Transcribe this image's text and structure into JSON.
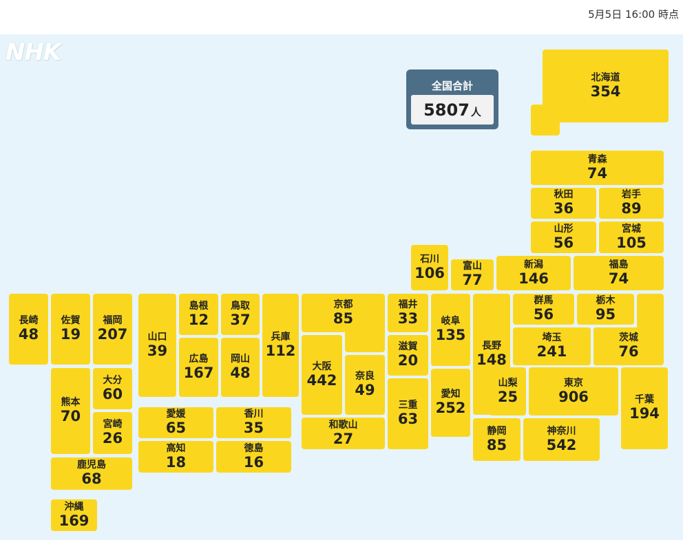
{
  "timestamp": "5月5日 16:00 時点",
  "logo": "NHK",
  "total": {
    "label": "全国合計",
    "value": "5807",
    "unit": "人"
  },
  "prefectures": [
    {
      "id": "hokkaido",
      "name": "北海道",
      "value": "354"
    },
    {
      "id": "aomori",
      "name": "青森",
      "value": "74"
    },
    {
      "id": "akita",
      "name": "秋田",
      "value": "36"
    },
    {
      "id": "iwate",
      "name": "岩手",
      "value": "89"
    },
    {
      "id": "yamagata",
      "name": "山形",
      "value": "56"
    },
    {
      "id": "miyagi",
      "name": "宮城",
      "value": "105"
    },
    {
      "id": "ishikawa",
      "name": "石川",
      "value": "106"
    },
    {
      "id": "toyama",
      "name": "富山",
      "value": "77"
    },
    {
      "id": "niigata",
      "name": "新潟",
      "value": "146"
    },
    {
      "id": "fukushima",
      "name": "福島",
      "value": "74"
    },
    {
      "id": "nagasaki",
      "name": "長崎",
      "value": "48"
    },
    {
      "id": "saga",
      "name": "佐賀",
      "value": "19"
    },
    {
      "id": "fukuoka",
      "name": "福岡",
      "value": "207"
    },
    {
      "id": "yamaguchi",
      "name": "山口",
      "value": "39"
    },
    {
      "id": "shimane",
      "name": "島根",
      "value": "12"
    },
    {
      "id": "tottori",
      "name": "鳥取",
      "value": "37"
    },
    {
      "id": "hyogo",
      "name": "兵庫",
      "value": "112"
    },
    {
      "id": "kyoto",
      "name": "京都",
      "value": "85"
    },
    {
      "id": "fukui",
      "name": "福井",
      "value": "33"
    },
    {
      "id": "gifu",
      "name": "岐阜",
      "value": "135"
    },
    {
      "id": "nagano",
      "name": "長野",
      "value": "148"
    },
    {
      "id": "gunma",
      "name": "群馬",
      "value": "56"
    },
    {
      "id": "tochigi",
      "name": "栃木",
      "value": "95"
    },
    {
      "id": "ibaraki",
      "name": "茨城",
      "value": "76"
    },
    {
      "id": "saitama",
      "name": "埼玉",
      "value": "241"
    },
    {
      "id": "hiroshima",
      "name": "広島",
      "value": "167"
    },
    {
      "id": "okayama",
      "name": "岡山",
      "value": "48"
    },
    {
      "id": "osaka",
      "name": "大阪",
      "value": "442"
    },
    {
      "id": "nara",
      "name": "奈良",
      "value": "49"
    },
    {
      "id": "shiga",
      "name": "滋賀",
      "value": "20"
    },
    {
      "id": "mie",
      "name": "三重",
      "value": "63"
    },
    {
      "id": "aichi",
      "name": "愛知",
      "value": "252"
    },
    {
      "id": "yamanashi",
      "name": "山梨",
      "value": "25"
    },
    {
      "id": "tokyo",
      "name": "東京",
      "value": "906"
    },
    {
      "id": "chiba",
      "name": "千葉",
      "value": "194"
    },
    {
      "id": "kumamoto",
      "name": "熊本",
      "value": "70"
    },
    {
      "id": "oita",
      "name": "大分",
      "value": "60"
    },
    {
      "id": "miyazaki",
      "name": "宮崎",
      "value": "26"
    },
    {
      "id": "ehime",
      "name": "愛媛",
      "value": "65"
    },
    {
      "id": "kagawa",
      "name": "香川",
      "value": "35"
    },
    {
      "id": "kochi",
      "name": "高知",
      "value": "18"
    },
    {
      "id": "tokushima",
      "name": "徳島",
      "value": "16"
    },
    {
      "id": "wakayama",
      "name": "和歌山",
      "value": "27"
    },
    {
      "id": "shizuoka",
      "name": "静岡",
      "value": "85"
    },
    {
      "id": "kanagawa",
      "name": "神奈川",
      "value": "542"
    },
    {
      "id": "kagoshima",
      "name": "鹿児島",
      "value": "68"
    },
    {
      "id": "okinawa",
      "name": "沖縄",
      "value": "169"
    }
  ],
  "colors": {
    "tile": "#fad71e",
    "map_background": "#e7f4fb",
    "total_panel": "#4d6e87"
  }
}
